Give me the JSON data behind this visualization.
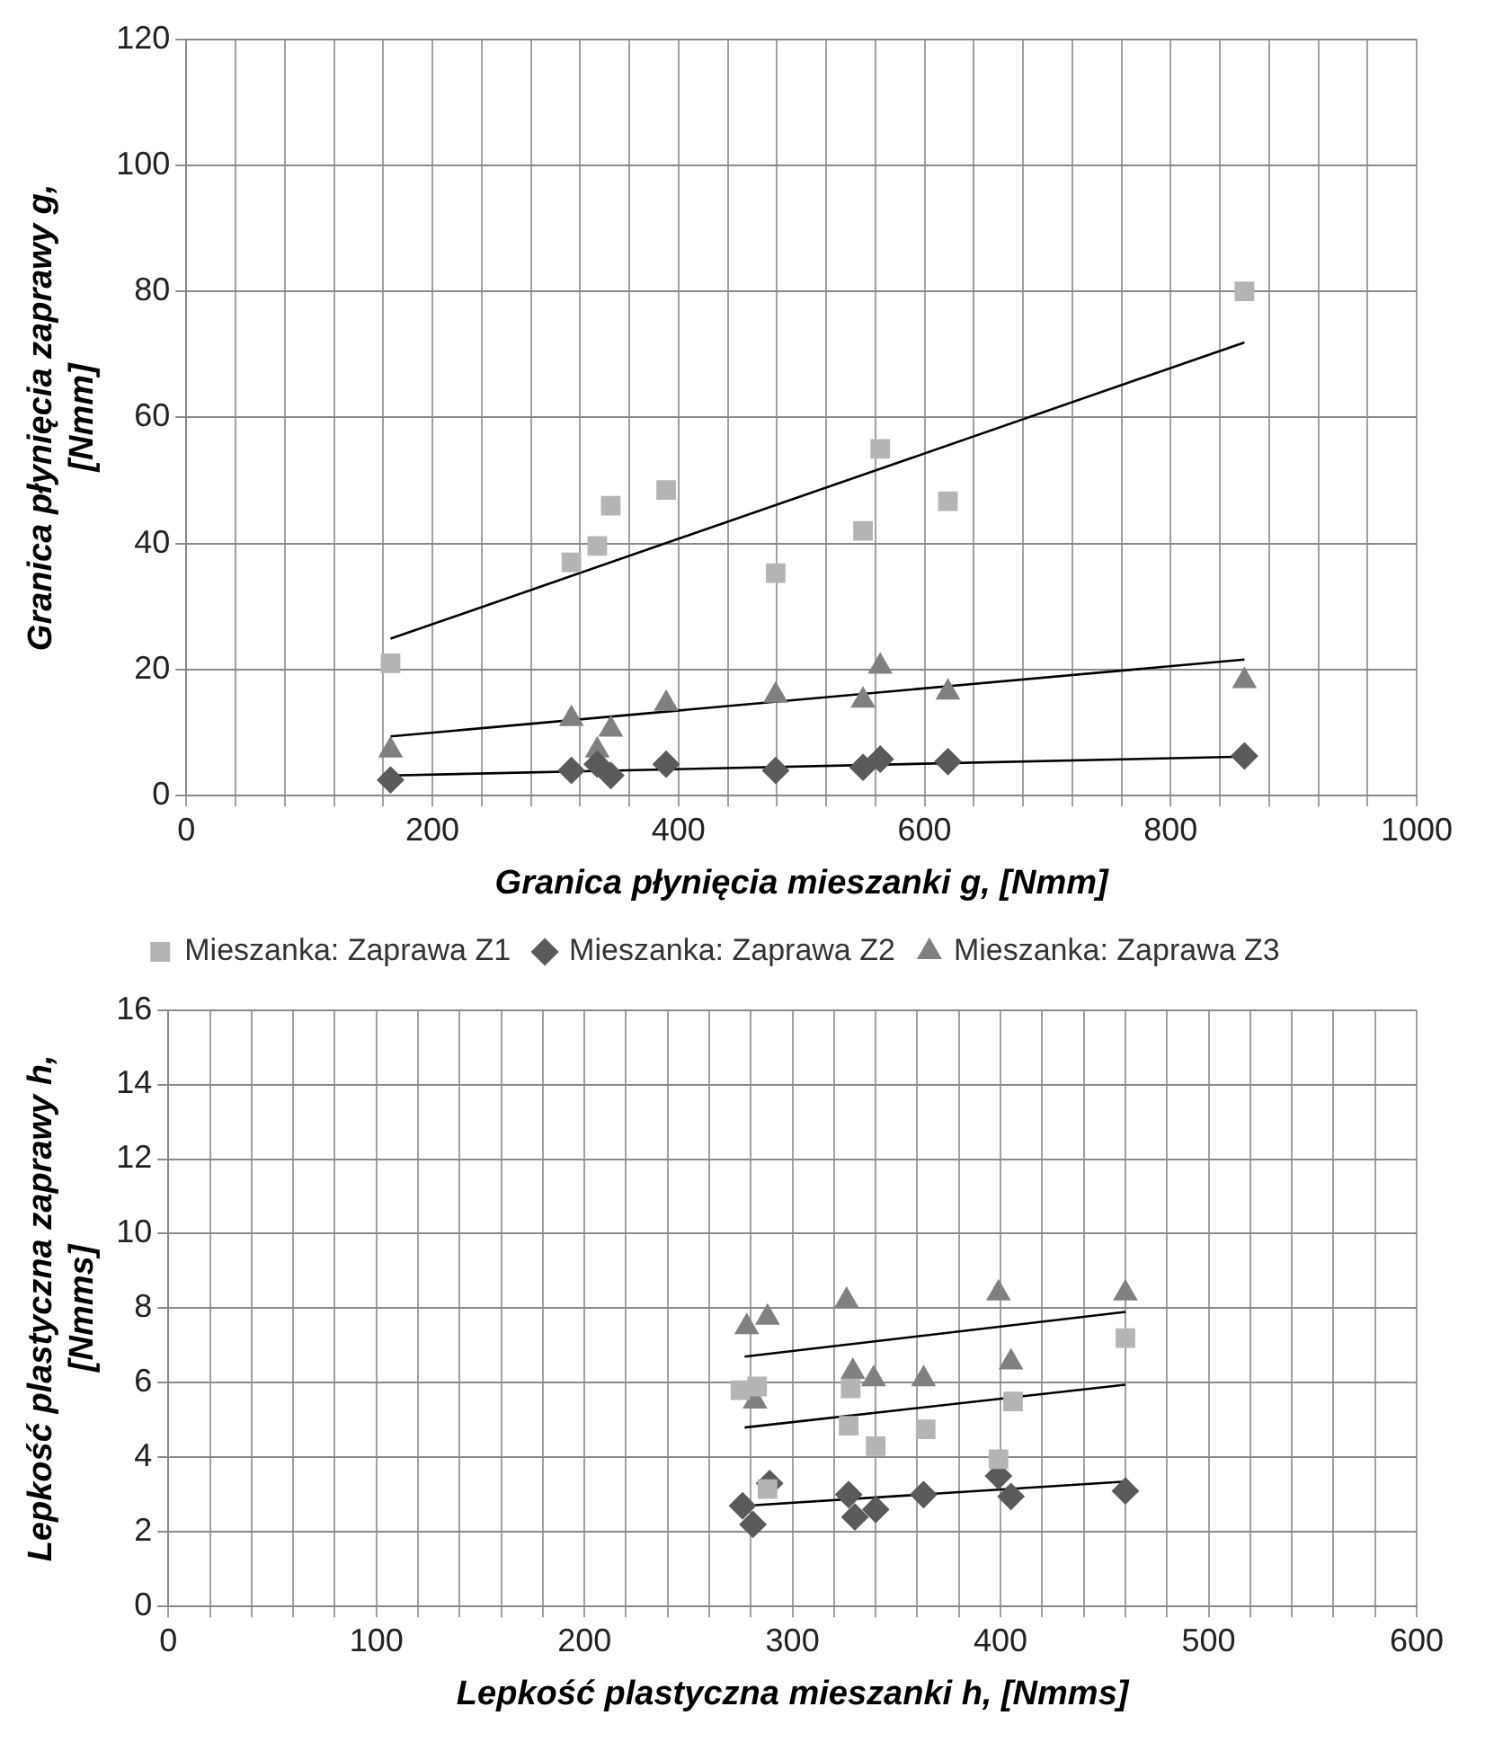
{
  "chart_data": [
    {
      "type": "scatter",
      "xlabel": "Granica płynięcia mieszanki g, [Nmm]",
      "ylabel": "Granica płynięcia zaprawy g,\n[Nmm]",
      "x": [
        166,
        313,
        334,
        345,
        390,
        479,
        550,
        564,
        619,
        860
      ],
      "xlim": [
        0,
        1000
      ],
      "ylim": [
        0,
        120
      ],
      "xticks": [
        0,
        {
          "value": 40,
          "label": null
        },
        {
          "value": 80,
          "label": null
        },
        {
          "value": 120,
          "label": null
        },
        {
          "value": 160,
          "label": null
        },
        200,
        {
          "value": 240,
          "label": null
        },
        {
          "value": 280,
          "label": null
        },
        {
          "value": 320,
          "label": null
        },
        {
          "value": 360,
          "label": null
        },
        400,
        {
          "value": 440,
          "label": null
        },
        {
          "value": 480,
          "label": null
        },
        {
          "value": 520,
          "label": null
        },
        {
          "value": 560,
          "label": null
        },
        600,
        {
          "value": 640,
          "label": null
        },
        {
          "value": 680,
          "label": null
        },
        {
          "value": 720,
          "label": null
        },
        {
          "value": 760,
          "label": null
        },
        800,
        {
          "value": 840,
          "label": null
        },
        {
          "value": 880,
          "label": null
        },
        {
          "value": 920,
          "label": null
        },
        {
          "value": 960,
          "label": null
        },
        1000
      ],
      "yticks": [
        0,
        20,
        40,
        60,
        80,
        100,
        120
      ],
      "grid": true,
      "legend": "bottom",
      "series": [
        {
          "name": "Mieszanka: Zaprawa Z1",
          "type": "scatter",
          "marker": "square",
          "color": "#b4b4b4",
          "values": [
            21,
            37,
            39.6,
            46,
            48.5,
            35.3,
            42,
            55,
            46.7,
            80
          ]
        },
        {
          "name": "Mieszanka: Zaprawa Z2",
          "type": "scatter",
          "marker": "diamond",
          "color": "#5a5a5a",
          "values": [
            2.5,
            4,
            5,
            3.2,
            5,
            4,
            4.5,
            5.8,
            5.4,
            6.3
          ]
        },
        {
          "name": "Mieszanka: Zaprawa Z3",
          "type": "scatter",
          "marker": "triangle",
          "color": "#808080",
          "values": [
            7.2,
            12.2,
            7.2,
            10.5,
            14.6,
            15.9,
            15.1,
            20.5,
            16.4,
            18.2
          ]
        },
        {
          "type": "line",
          "color": "#000000",
          "x": [
            166,
            860
          ],
          "values": [
            24.9,
            71.9
          ]
        },
        {
          "type": "line",
          "color": "#000000",
          "x": [
            166,
            860
          ],
          "values": [
            3.2,
            6.2
          ]
        },
        {
          "type": "line",
          "color": "#000000",
          "x": [
            166,
            860
          ],
          "values": [
            9.4,
            21.6
          ]
        }
      ]
    },
    {
      "type": "scatter",
      "xlabel": "Lepkość plastyczna mieszanki h, [Nmms]",
      "ylabel": "Lepkość plastyczna zaprawy h,\n[Nmms]",
      "xlim": [
        0,
        600
      ],
      "ylim": [
        0,
        16
      ],
      "xticks": [
        0,
        {
          "value": 20,
          "label": null
        },
        {
          "value": 40,
          "label": null
        },
        {
          "value": 60,
          "label": null
        },
        {
          "value": 80,
          "label": null
        },
        100,
        {
          "value": 120,
          "label": null
        },
        {
          "value": 140,
          "label": null
        },
        {
          "value": 160,
          "label": null
        },
        {
          "value": 180,
          "label": null
        },
        200,
        {
          "value": 220,
          "label": null
        },
        {
          "value": 240,
          "label": null
        },
        {
          "value": 260,
          "label": null
        },
        {
          "value": 280,
          "label": null
        },
        300,
        {
          "value": 320,
          "label": null
        },
        {
          "value": 340,
          "label": null
        },
        {
          "value": 360,
          "label": null
        },
        {
          "value": 380,
          "label": null
        },
        400,
        {
          "value": 420,
          "label": null
        },
        {
          "value": 440,
          "label": null
        },
        {
          "value": 460,
          "label": null
        },
        {
          "value": 480,
          "label": null
        },
        500,
        {
          "value": 520,
          "label": null
        },
        {
          "value": 540,
          "label": null
        },
        {
          "value": 560,
          "label": null
        },
        {
          "value": 580,
          "label": null
        },
        600
      ],
      "yticks": [
        0,
        2,
        4,
        6,
        8,
        10,
        12,
        14,
        16
      ],
      "grid": true,
      "series": [
        {
          "type": "scatter",
          "marker": "square",
          "color": "#b4b4b4",
          "x": [
            275,
            283,
            288,
            328,
            327,
            340,
            364,
            399,
            406,
            460
          ],
          "values": [
            5.8,
            5.9,
            3.15,
            5.85,
            4.85,
            4.3,
            4.75,
            3.95,
            5.5,
            7.2
          ]
        },
        {
          "type": "scatter",
          "marker": "diamond",
          "color": "#5a5a5a",
          "x": [
            276,
            281,
            289,
            327,
            330,
            340,
            363,
            399,
            405,
            460
          ],
          "values": [
            2.7,
            2.2,
            3.3,
            3,
            2.4,
            2.6,
            3,
            3.5,
            2.95,
            3.1
          ]
        },
        {
          "type": "scatter",
          "marker": "triangle",
          "color": "#808080",
          "x": [
            278,
            288,
            326,
            282,
            329,
            339,
            363,
            399,
            405,
            460
          ],
          "values": [
            7.5,
            7.75,
            8.2,
            5.5,
            6.3,
            6.1,
            6.1,
            8.4,
            6.55,
            8.4
          ]
        },
        {
          "type": "line",
          "color": "#000000",
          "x": [
            277,
            460
          ],
          "values": [
            2.7,
            3.35
          ]
        },
        {
          "type": "line",
          "color": "#000000",
          "x": [
            277,
            460
          ],
          "values": [
            4.8,
            5.95
          ]
        },
        {
          "type": "line",
          "color": "#000000",
          "x": [
            277,
            460
          ],
          "values": [
            6.7,
            7.9
          ]
        }
      ]
    }
  ]
}
